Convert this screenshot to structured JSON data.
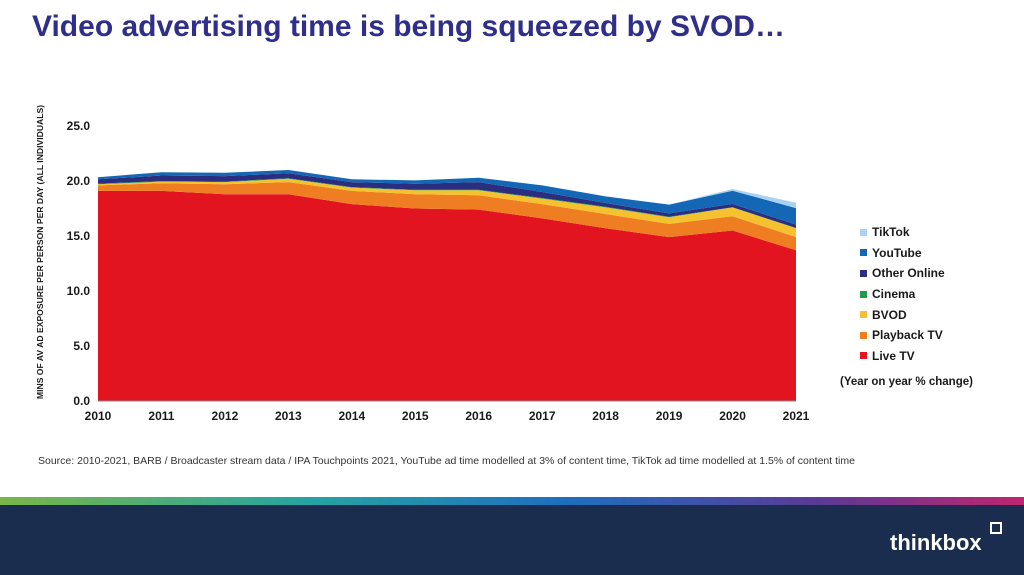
{
  "title": "Video advertising time is being squeezed by SVOD…",
  "chart_data": {
    "type": "area",
    "stacked": true,
    "x": [
      2010,
      2011,
      2012,
      2013,
      2014,
      2015,
      2016,
      2017,
      2018,
      2019,
      2020,
      2021
    ],
    "ylabel": "MINS OF AV AD EXPOSURE PER PERSON PER DAY (ALL INDIVIDUALS)",
    "xlabel": "",
    "ylim": [
      0,
      25
    ],
    "yticks": [
      0,
      5,
      10,
      15,
      20,
      25
    ],
    "ytick_labels": [
      "0.0",
      "5.0",
      "10.0",
      "15.0",
      "20.0",
      "25.0"
    ],
    "grid": false,
    "legend_position": "right",
    "series": [
      {
        "name": "Live TV",
        "color": "#e2141f",
        "values": [
          19.1,
          19.1,
          18.8,
          18.8,
          17.9,
          17.5,
          17.4,
          16.6,
          15.7,
          14.9,
          15.5,
          13.7
        ]
      },
      {
        "name": "Playback TV",
        "color": "#ef7d22",
        "values": [
          0.5,
          0.7,
          0.9,
          1.1,
          1.2,
          1.3,
          1.3,
          1.3,
          1.3,
          1.2,
          1.3,
          1.2
        ]
      },
      {
        "name": "BVOD",
        "color": "#f6c12e",
        "values": [
          0.1,
          0.15,
          0.2,
          0.3,
          0.3,
          0.35,
          0.45,
          0.5,
          0.6,
          0.6,
          0.8,
          0.8
        ]
      },
      {
        "name": "Cinema",
        "color": "#1f9c4a",
        "values": [
          0.05,
          0.05,
          0.05,
          0.05,
          0.05,
          0.05,
          0.05,
          0.05,
          0.05,
          0.05,
          0.02,
          0.04
        ]
      },
      {
        "name": "Other Online",
        "color": "#2b2d7e",
        "values": [
          0.4,
          0.5,
          0.5,
          0.45,
          0.45,
          0.55,
          0.7,
          0.55,
          0.35,
          0.3,
          0.3,
          0.3
        ]
      },
      {
        "name": "YouTube",
        "color": "#1467b4",
        "values": [
          0.2,
          0.3,
          0.3,
          0.3,
          0.25,
          0.3,
          0.4,
          0.6,
          0.6,
          0.8,
          1.2,
          1.5
        ]
      },
      {
        "name": "TikTok",
        "color": "#a9d2f2",
        "values": [
          0,
          0,
          0,
          0,
          0,
          0,
          0,
          0,
          0,
          0,
          0.15,
          0.5
        ]
      }
    ]
  },
  "legend": [
    {
      "label": "TikTok",
      "color": "#a9d2f2"
    },
    {
      "label": "YouTube",
      "color": "#1467b4"
    },
    {
      "label": "Other Online",
      "color": "#2b2d7e"
    },
    {
      "label": "Cinema",
      "color": "#1f9c4a"
    },
    {
      "label": "BVOD",
      "color": "#f6c12e"
    },
    {
      "label": "Playback TV",
      "color": "#ef7d22"
    },
    {
      "label": "Live TV",
      "color": "#e2141f"
    }
  ],
  "note": "(Year on year % change)",
  "source": "Source: 2010-2021, BARB / Broadcaster stream data / IPA Touchpoints 2021, YouTube ad time modelled at 3% of content time, TikTok ad time modelled at 1.5% of content time",
  "brand": {
    "logo_text": "thinkbox"
  }
}
